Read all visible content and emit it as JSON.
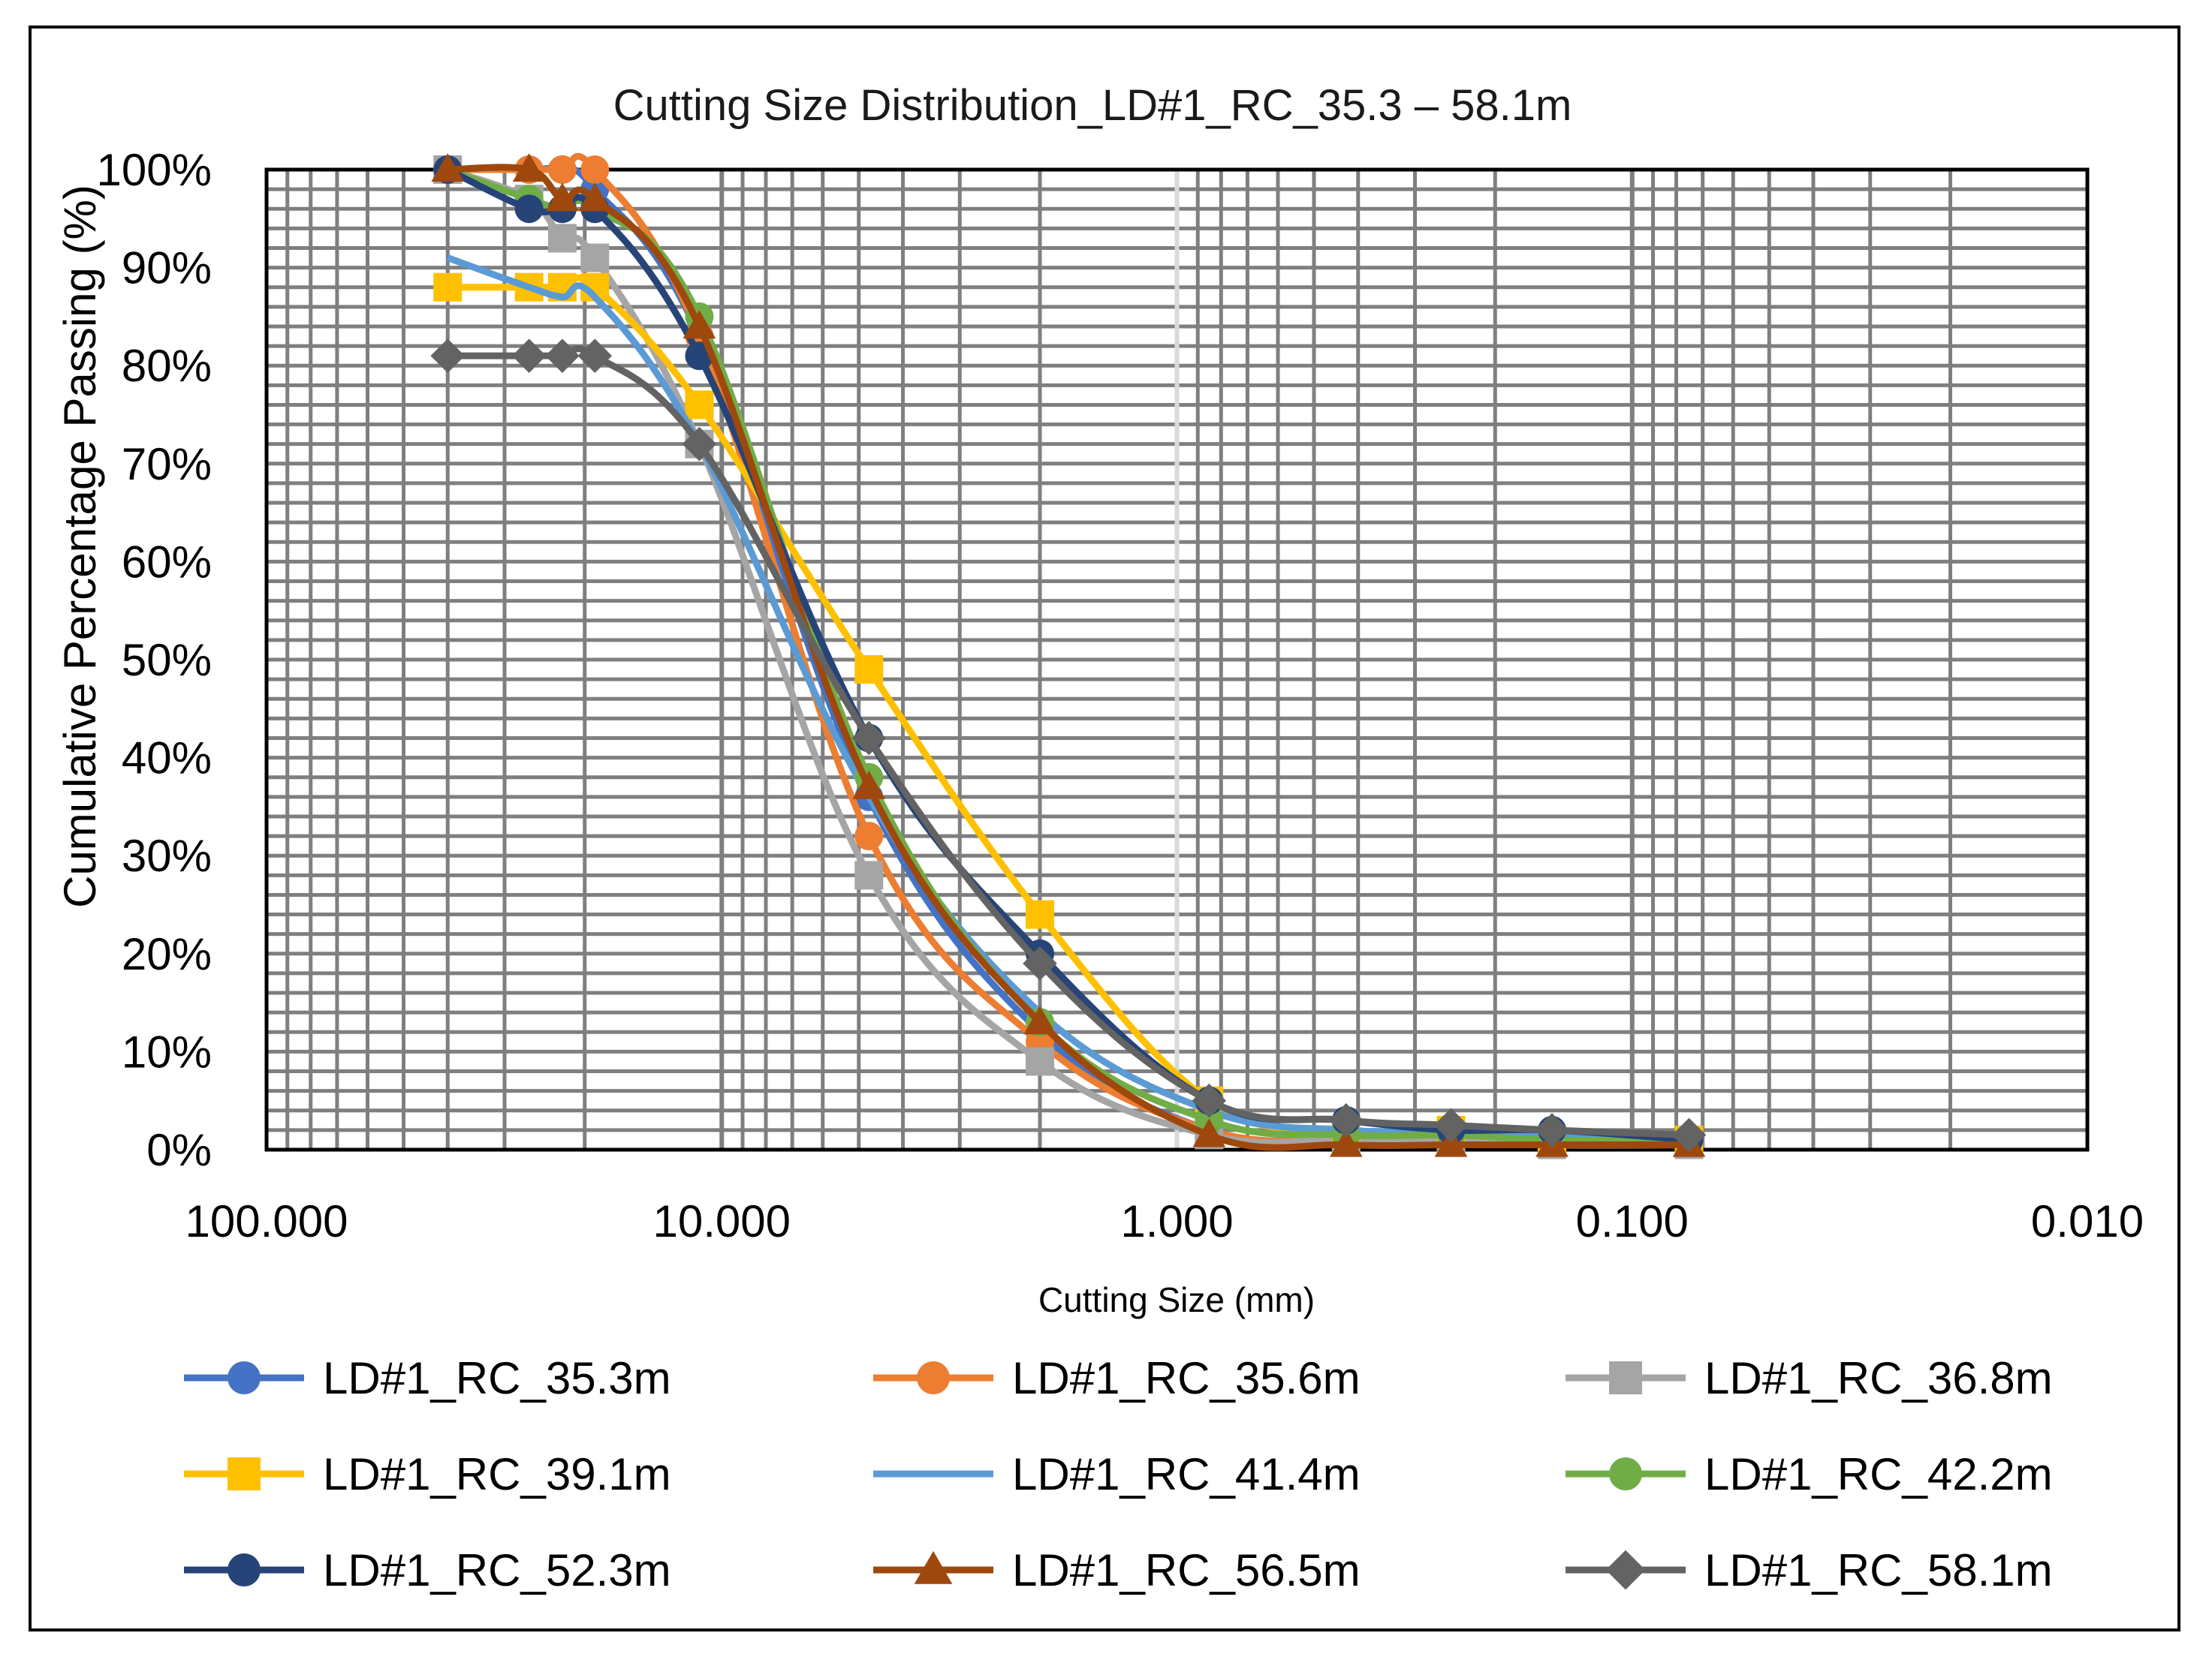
{
  "chart_data": {
    "type": "line",
    "title": "Cutting Size Distribution_LD#1_RC_35.3 – 58.1m",
    "xlabel": "Cutting Size (mm)",
    "ylabel": "Cumulative  Percentage  Passing (%)",
    "x_scale": "log",
    "x_reversed": true,
    "xlim": [
      100,
      0.01
    ],
    "ylim": [
      0,
      100
    ],
    "x_tick_labels": [
      "100.000",
      "10.000",
      "1.000",
      "0.100",
      "0.010"
    ],
    "x_tick_values": [
      100,
      10,
      1,
      0.1,
      0.01
    ],
    "y_tick_labels": [
      "0%",
      "10%",
      "20%",
      "30%",
      "40%",
      "50%",
      "60%",
      "70%",
      "80%",
      "90%",
      "100%"
    ],
    "y_tick_values": [
      0,
      10,
      20,
      30,
      40,
      50,
      60,
      70,
      80,
      90,
      100
    ],
    "grid": true,
    "legend_position": "bottom",
    "series": [
      {
        "name": "LD#1_RC_35.3m",
        "color": "#4472C4",
        "marker": "circle",
        "x": [
          40,
          26.5,
          22.4,
          19,
          11.2,
          4.75,
          2,
          0.85,
          0.425,
          0.25,
          0.15,
          0.075
        ],
        "y": [
          100,
          100,
          100,
          98,
          83,
          36,
          12,
          2,
          1,
          1,
          0.5,
          0.5
        ]
      },
      {
        "name": "LD#1_RC_35.6m",
        "color": "#ED7D31",
        "marker": "circle",
        "x": [
          40,
          26.5,
          22.4,
          19,
          11.2,
          4.75,
          2,
          0.85,
          0.425,
          0.25,
          0.15,
          0.075
        ],
        "y": [
          100,
          100,
          100,
          100,
          83,
          32,
          11,
          2,
          1,
          1,
          0.5,
          0.5
        ]
      },
      {
        "name": "LD#1_RC_36.8m",
        "color": "#A5A5A5",
        "marker": "square",
        "x": [
          40,
          26.5,
          22.4,
          19,
          11.2,
          4.75,
          2,
          0.85,
          0.425,
          0.25,
          0.15,
          0.075
        ],
        "y": [
          100,
          97,
          93,
          91,
          72,
          28,
          9,
          1.5,
          1,
          1,
          0.5,
          0.5
        ]
      },
      {
        "name": "LD#1_RC_39.1m",
        "color": "#FFC000",
        "marker": "square",
        "x": [
          40,
          26.5,
          22.4,
          19,
          11.2,
          4.75,
          2,
          0.85,
          0.425,
          0.25,
          0.15,
          0.075
        ],
        "y": [
          88,
          88,
          88,
          88,
          76,
          49,
          24,
          5,
          2,
          2,
          1,
          1
        ]
      },
      {
        "name": "LD#1_RC_41.4m",
        "color": "#5B9BD5",
        "marker": "none",
        "x": [
          40,
          26.5,
          22.4,
          19,
          11.2,
          4.75,
          2,
          0.85,
          0.425,
          0.25,
          0.15,
          0.075
        ],
        "y": [
          91,
          88,
          87,
          87,
          72,
          36,
          14,
          4,
          2,
          2,
          1.5,
          1
        ]
      },
      {
        "name": "LD#1_RC_42.2m",
        "color": "#70AD47",
        "marker": "circle",
        "x": [
          40,
          26.5,
          22.4,
          19,
          11.2,
          4.75,
          2,
          0.85,
          0.425,
          0.25,
          0.15,
          0.075
        ],
        "y": [
          100,
          97,
          96,
          96,
          85,
          38,
          13,
          3,
          1.5,
          1.5,
          1,
          1
        ]
      },
      {
        "name": "LD#1_RC_52.3m",
        "color": "#264478",
        "marker": "circle",
        "x": [
          40,
          26.5,
          22.4,
          19,
          11.2,
          4.75,
          2,
          0.85,
          0.425,
          0.25,
          0.15,
          0.075
        ],
        "y": [
          100,
          96,
          96,
          96,
          81,
          42,
          20,
          5,
          3,
          2,
          2,
          1
        ]
      },
      {
        "name": "LD#1_RC_56.5m",
        "color": "#9E480E",
        "marker": "triangle",
        "x": [
          40,
          26.5,
          22.4,
          19,
          11.2,
          4.75,
          2,
          0.85,
          0.425,
          0.25,
          0.15,
          0.075
        ],
        "y": [
          100,
          100,
          97,
          97,
          84,
          37,
          13,
          1.5,
          0.5,
          0.5,
          0.5,
          0.5
        ]
      },
      {
        "name": "LD#1_RC_58.1m",
        "color": "#636363",
        "marker": "diamond",
        "x": [
          40,
          26.5,
          22.4,
          19,
          11.2,
          4.75,
          2,
          0.85,
          0.425,
          0.25,
          0.15,
          0.075
        ],
        "y": [
          81,
          81,
          81,
          81,
          72,
          42,
          19,
          5,
          3,
          2.5,
          2,
          1.5
        ]
      }
    ]
  }
}
